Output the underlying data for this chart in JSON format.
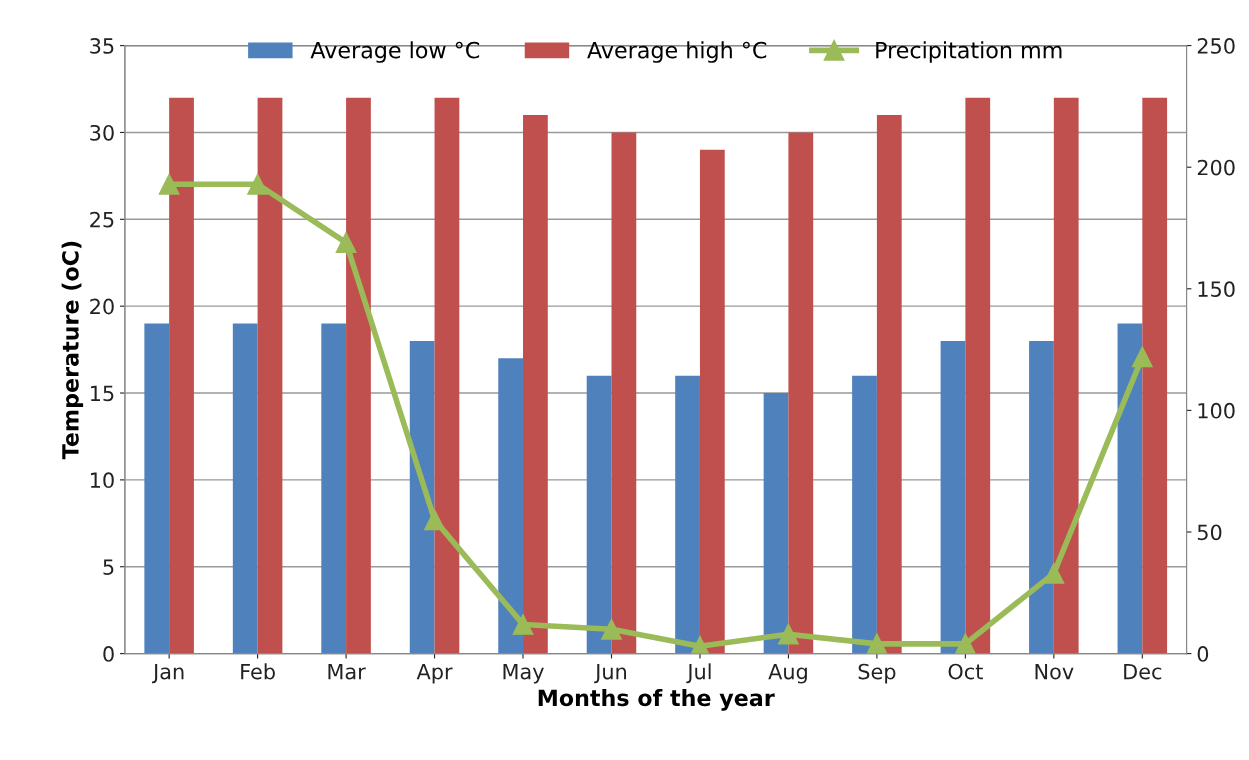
{
  "chart_data": {
    "type": "bar",
    "xlabel": "Months of the year",
    "ylabel": "Temperature (oC)",
    "categories": [
      "Jan",
      "Feb",
      "Mar",
      "Apr",
      "May",
      "Jun",
      "Jul",
      "Aug",
      "Sep",
      "Oct",
      "Nov",
      "Dec"
    ],
    "series": [
      {
        "name": "Average low °C",
        "color": "#4f81bd",
        "values": [
          19,
          19,
          19,
          18,
          17,
          16,
          16,
          15,
          16,
          18,
          18,
          19
        ]
      },
      {
        "name": "Average high °C",
        "color": "#c0504d",
        "values": [
          32,
          32,
          32,
          32,
          31,
          30,
          29,
          30,
          31,
          32,
          32,
          32
        ]
      },
      {
        "name": "Precipitation mm",
        "color": "#9bbb59",
        "type": "line",
        "axis": "y2",
        "marker": "triangle",
        "values": [
          193,
          193,
          169,
          55,
          12,
          10,
          3,
          8,
          4,
          4,
          33,
          122
        ]
      }
    ],
    "ylim": [
      0,
      35
    ],
    "yticks": [
      0,
      5,
      10,
      15,
      20,
      25,
      30,
      35
    ],
    "y2lim": [
      0,
      250
    ],
    "y2ticks": [
      0,
      50,
      100,
      150,
      200,
      250
    ],
    "grid": "y",
    "legend": "top"
  }
}
